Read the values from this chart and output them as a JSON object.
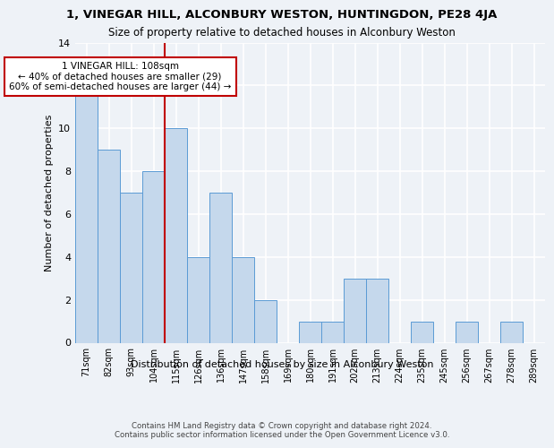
{
  "title1": "1, VINEGAR HILL, ALCONBURY WESTON, HUNTINGDON, PE28 4JA",
  "title2": "Size of property relative to detached houses in Alconbury Weston",
  "xlabel": "Distribution of detached houses by size in Alconbury Weston",
  "ylabel": "Number of detached properties",
  "footer1": "Contains HM Land Registry data © Crown copyright and database right 2024.",
  "footer2": "Contains public sector information licensed under the Open Government Licence v3.0.",
  "categories": [
    "71sqm",
    "82sqm",
    "93sqm",
    "104sqm",
    "115sqm",
    "126sqm",
    "136sqm",
    "147sqm",
    "158sqm",
    "169sqm",
    "180sqm",
    "191sqm",
    "202sqm",
    "213sqm",
    "224sqm",
    "235sqm",
    "245sqm",
    "256sqm",
    "267sqm",
    "278sqm",
    "289sqm"
  ],
  "values": [
    12,
    9,
    7,
    8,
    10,
    4,
    7,
    4,
    2,
    0,
    1,
    1,
    3,
    3,
    0,
    1,
    0,
    1,
    0,
    1,
    0
  ],
  "bar_color": "#c5d8ec",
  "bar_edge_color": "#5b9bd5",
  "vline_x": 3.5,
  "vline_color": "#c00000",
  "annotation_text": "1 VINEGAR HILL: 108sqm\n← 40% of detached houses are smaller (29)\n60% of semi-detached houses are larger (44) →",
  "annotation_box_color": "#c00000",
  "ylim": [
    0,
    14
  ],
  "yticks": [
    0,
    2,
    4,
    6,
    8,
    10,
    12,
    14
  ],
  "background_color": "#eef2f7",
  "plot_bg_color": "#eef2f7",
  "grid_color": "#ffffff"
}
